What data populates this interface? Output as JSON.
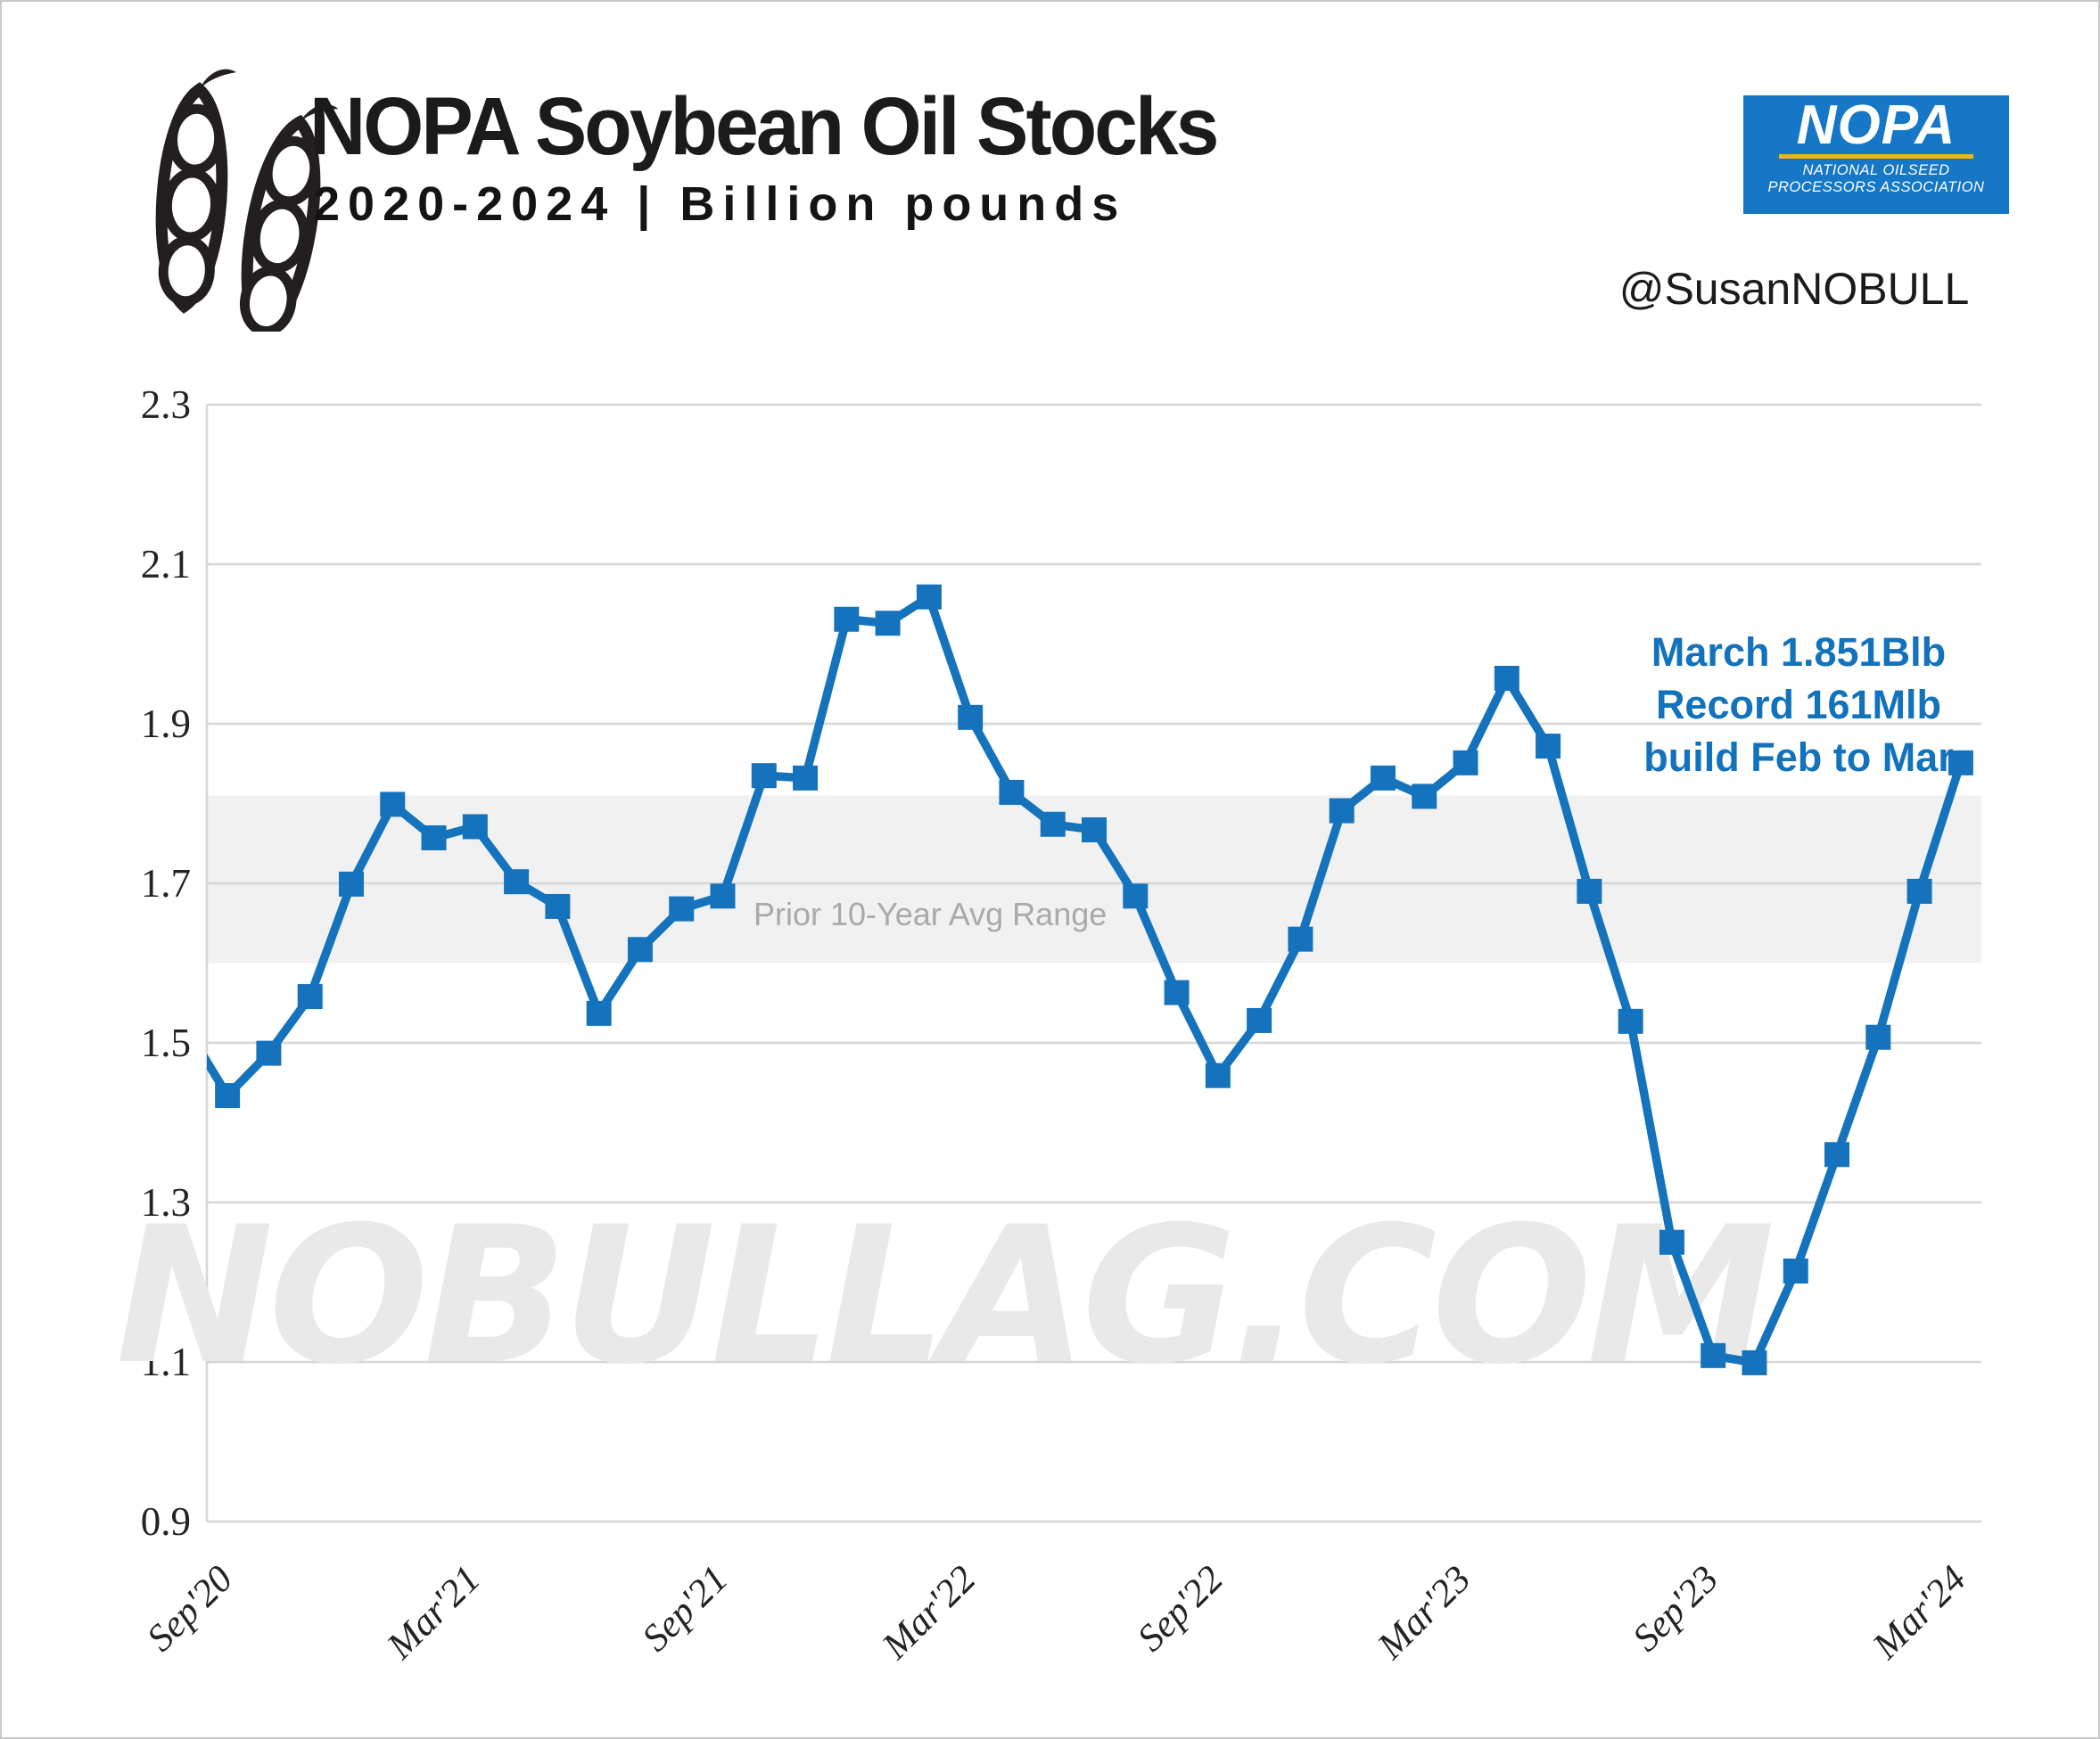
{
  "header": {
    "title": "NOPA Soybean Oil Stocks",
    "subtitle": "2020-2024 | Billion pounds",
    "handle": "@SusanNOBULL",
    "logo": {
      "name": "NOPA",
      "sub_line1": "NATIONAL OILSEED",
      "sub_line2": "PROCESSORS ASSOCIATION"
    }
  },
  "watermark": "NOBULLAG.COM",
  "annotation": {
    "line1": "March 1.851Blb",
    "line2": "Record 161Mlb",
    "line3": "build Feb to Mar"
  },
  "chart_data": {
    "type": "line",
    "title": "NOPA Soybean Oil Stocks",
    "subtitle": "2020-2024 | Billion pounds",
    "ylabel": "Billion pounds",
    "xlabel": "",
    "x": [
      "Sep'20",
      "Oct'20",
      "Nov'20",
      "Dec'20",
      "Jan'21",
      "Feb'21",
      "Mar'21",
      "Apr'21",
      "May'21",
      "Jun'21",
      "Jul'21",
      "Aug'21",
      "Sep'21",
      "Oct'21",
      "Nov'21",
      "Dec'21",
      "Jan'22",
      "Feb'22",
      "Mar'22",
      "Apr'22",
      "May'22",
      "Jun'22",
      "Jul'22",
      "Aug'22",
      "Sep'22",
      "Oct'22",
      "Nov'22",
      "Dec'22",
      "Jan'23",
      "Feb'23",
      "Mar'23",
      "Apr'23",
      "May'23",
      "Jun'23",
      "Jul'23",
      "Aug'23",
      "Sep'23",
      "Oct'23",
      "Nov'23",
      "Dec'23",
      "Jan'24",
      "Feb'24",
      "Mar'24"
    ],
    "values": [
      1.434,
      1.487,
      1.558,
      1.699,
      1.799,
      1.757,
      1.771,
      1.702,
      1.671,
      1.537,
      1.617,
      1.668,
      1.684,
      1.835,
      1.832,
      2.031,
      2.026,
      2.059,
      1.908,
      1.814,
      1.774,
      1.767,
      1.684,
      1.563,
      1.459,
      1.528,
      1.63,
      1.791,
      1.832,
      1.809,
      1.851,
      1.957,
      1.872,
      1.69,
      1.527,
      1.25,
      1.108,
      1.099,
      1.214,
      1.36,
      1.507,
      1.69,
      1.851
    ],
    "lead_in": {
      "label": "Aug'20",
      "value": 1.519
    },
    "x_tick_labels": [
      "Sep'20",
      "Mar'21",
      "Sep'21",
      "Mar'22",
      "Sep'22",
      "Mar'23",
      "Sep'23",
      "Mar'24"
    ],
    "x_tick_indices": [
      0,
      6,
      12,
      18,
      24,
      30,
      36,
      42
    ],
    "y_ticks": [
      "0.9",
      "1.1",
      "1.3",
      "1.5",
      "1.7",
      "1.9",
      "2.1",
      "2.3"
    ],
    "ylim": [
      0.9,
      2.3
    ],
    "grid": true,
    "band": {
      "label": "Prior 10-Year Avg Range",
      "from": 1.6,
      "to": 1.81
    },
    "marker": "square",
    "colors": {
      "line": "#1473BC",
      "annotation": "#1272BC",
      "band": "#F1F1F1",
      "gridline": "#D6D6D6",
      "axis_line": "#C9C9C9",
      "tick_label": "#232323",
      "band_label": "#A9A9A9",
      "watermark": "#E9E9E9",
      "logo_blue": "#1577C5",
      "logo_yellow": "#F2B212"
    }
  }
}
